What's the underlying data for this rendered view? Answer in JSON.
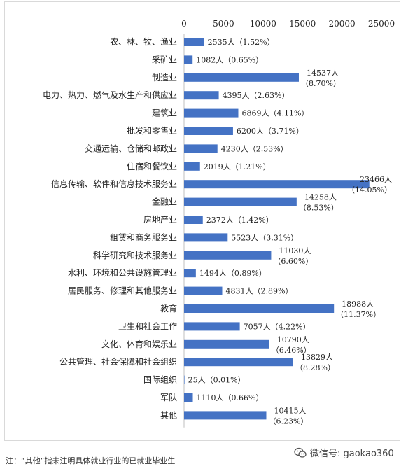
{
  "chart_data": {
    "type": "bar",
    "orientation": "horizontal",
    "categories": [
      "农、林、牧、渔业",
      "采矿业",
      "制造业",
      "电力、热力、燃气及水生产和供应业",
      "建筑业",
      "批发和零售业",
      "交通运输、仓储和邮政业",
      "住宿和餐饮业",
      "信息传输、软件和信息技术服务业",
      "金融业",
      "房地产业",
      "租赁和商务服务业",
      "科学研究和技术服务业",
      "水利、环境和公共设施管理业",
      "居民服务、修理和其他服务业",
      "教育",
      "卫生和社会工作",
      "文化、体育和娱乐业",
      "公共管理、社会保障和社会组织",
      "国际组织",
      "军队",
      "其他"
    ],
    "values": [
      2535,
      1082,
      14537,
      4395,
      6869,
      6200,
      4230,
      2019,
      23466,
      14258,
      2372,
      5523,
      11030,
      1494,
      4831,
      18988,
      7057,
      10790,
      13829,
      25,
      1110,
      10415
    ],
    "labels": [
      [
        "2535人（1.52%）"
      ],
      [
        "1082人（0.65%）"
      ],
      [
        "14537人",
        "（8.70%）"
      ],
      [
        "4395人（2.63%）"
      ],
      [
        "6869人（4.11%）"
      ],
      [
        "6200人（3.71%）"
      ],
      [
        "4230人（2.53%）"
      ],
      [
        "2019人（1.21%）"
      ],
      [
        "23466人",
        "（14.05%）"
      ],
      [
        "14258人",
        "（8.53%）"
      ],
      [
        "2372人（1.42%）"
      ],
      [
        "5523人（3.31%）"
      ],
      [
        "11030人",
        "（6.60%）"
      ],
      [
        "1494人（0.89%）"
      ],
      [
        "4831人（2.89%）"
      ],
      [
        "18988人",
        "（11.37%）"
      ],
      [
        "7057人（4.22%）"
      ],
      [
        "10790人",
        "（6.46%）"
      ],
      [
        "13829人",
        "（8.28%）"
      ],
      [
        "25人（0.01%）"
      ],
      [
        "1110人（0.66%）"
      ],
      [
        "10415人",
        "（6.23%）"
      ]
    ],
    "xlim": [
      0,
      25000
    ],
    "xticks": [
      "0",
      "5000",
      "10000",
      "15000",
      "20000",
      "25000"
    ],
    "tick_values": [
      0,
      5000,
      10000,
      15000,
      20000,
      25000
    ],
    "bar_color": "#4472c4",
    "grid": false,
    "legend": "none"
  },
  "footnote": "注：“其他”指未注明具体就业行业的已就业毕业生",
  "watermark": {
    "text": "微信号: gaokao360",
    "icon": "wechat-icon"
  }
}
